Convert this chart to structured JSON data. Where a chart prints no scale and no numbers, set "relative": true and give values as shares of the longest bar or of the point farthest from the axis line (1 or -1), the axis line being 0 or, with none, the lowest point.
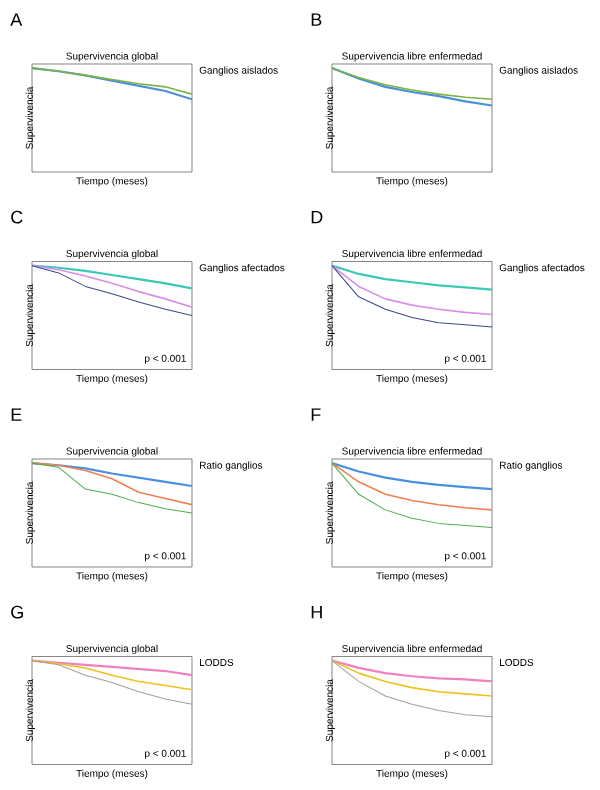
{
  "chart_data": [
    {
      "type": "line",
      "title": "A",
      "subtitle": "Supervivencia global",
      "xlabel": "Tiempo (meses)",
      "ylabel": "Supervivencia",
      "legend_title": "Ganglios aislados",
      "relative": true,
      "categories": [
        null,
        null,
        null,
        null,
        null,
        null,
        null
      ],
      "series": [
        {
          "color": "#4a90d9",
          "values": [
            1,
            0.97,
            0.93,
            0.88,
            0.83,
            0.78,
            0.7
          ]
        },
        {
          "color": "#7cb342",
          "values": [
            1,
            0.97,
            0.93,
            0.89,
            0.85,
            0.82,
            0.75
          ]
        }
      ]
    },
    {
      "type": "line",
      "title": "B",
      "subtitle": "Supervivencia libre enfermedad",
      "xlabel": "Tiempo (meses)",
      "ylabel": "Supervivencia",
      "legend_title": "Ganglios aislados",
      "relative": true,
      "categories": [
        null,
        null,
        null,
        null,
        null,
        null,
        null
      ],
      "series": [
        {
          "color": "#4a90d9",
          "values": [
            1,
            0.9,
            0.82,
            0.77,
            0.73,
            0.68,
            0.64
          ]
        },
        {
          "color": "#7cb342",
          "values": [
            1,
            0.91,
            0.84,
            0.79,
            0.75,
            0.72,
            0.7
          ]
        }
      ]
    },
    {
      "type": "line",
      "title": "C",
      "subtitle": "Supervivencia global",
      "xlabel": "Tiempo (meses)",
      "ylabel": "Supervivencia",
      "legend_title": "Ganglios afectados",
      "annotations": [
        "p < 0.001"
      ],
      "relative": true,
      "categories": [
        null,
        null,
        null,
        null,
        null,
        null,
        null
      ],
      "series": [
        {
          "color": "#3cc8b4",
          "values": [
            1,
            0.98,
            0.95,
            0.91,
            0.87,
            0.83,
            0.78
          ]
        },
        {
          "color": "#d98ee8",
          "values": [
            1,
            0.96,
            0.9,
            0.83,
            0.75,
            0.68,
            0.6
          ]
        },
        {
          "color": "#3a4a8c",
          "values": [
            1,
            0.93,
            0.8,
            0.73,
            0.65,
            0.58,
            0.52
          ]
        }
      ]
    },
    {
      "type": "line",
      "title": "D",
      "subtitle": "Supervivencia libre enfermedad",
      "xlabel": "Tiempo (meses)",
      "ylabel": "Supervivencia",
      "legend_title": "Ganglios afectados",
      "annotations": [
        "p < 0.001"
      ],
      "relative": true,
      "categories": [
        null,
        null,
        null,
        null,
        null,
        null,
        null
      ],
      "series": [
        {
          "color": "#3cc8b4",
          "values": [
            1,
            0.92,
            0.87,
            0.84,
            0.81,
            0.79,
            0.77
          ]
        },
        {
          "color": "#d98ee8",
          "values": [
            1,
            0.8,
            0.68,
            0.62,
            0.58,
            0.55,
            0.53
          ]
        },
        {
          "color": "#3a4a8c",
          "values": [
            1,
            0.7,
            0.58,
            0.5,
            0.45,
            0.43,
            0.41
          ]
        }
      ]
    },
    {
      "type": "line",
      "title": "E",
      "subtitle": "Supervivencia global",
      "xlabel": "Tiempo (meses)",
      "ylabel": "Supervivencia",
      "legend_title": "Ratio ganglios",
      "annotations": [
        "p < 0.001"
      ],
      "relative": true,
      "categories": [
        null,
        null,
        null,
        null,
        null,
        null,
        null
      ],
      "series": [
        {
          "color": "#4a90e2",
          "values": [
            1,
            0.98,
            0.95,
            0.9,
            0.86,
            0.82,
            0.78
          ]
        },
        {
          "color": "#f08050",
          "values": [
            1,
            0.98,
            0.93,
            0.85,
            0.72,
            0.66,
            0.6
          ]
        },
        {
          "color": "#4caf50",
          "values": [
            1,
            0.96,
            0.75,
            0.7,
            0.62,
            0.56,
            0.52
          ]
        }
      ]
    },
    {
      "type": "line",
      "title": "F",
      "subtitle": "Supervivencia libre enfermedad",
      "xlabel": "Tiempo (meses)",
      "ylabel": "Supervivencia",
      "legend_title": "Ratio ganglios",
      "annotations": [
        "p < 0.001"
      ],
      "relative": true,
      "categories": [
        null,
        null,
        null,
        null,
        null,
        null,
        null
      ],
      "series": [
        {
          "color": "#4a90e2",
          "values": [
            1,
            0.92,
            0.86,
            0.82,
            0.79,
            0.77,
            0.75
          ]
        },
        {
          "color": "#f08050",
          "values": [
            1,
            0.82,
            0.7,
            0.64,
            0.6,
            0.57,
            0.55
          ]
        },
        {
          "color": "#4caf50",
          "values": [
            1,
            0.7,
            0.55,
            0.47,
            0.42,
            0.4,
            0.38
          ]
        }
      ]
    },
    {
      "type": "line",
      "title": "G",
      "subtitle": "Supervivencia global",
      "xlabel": "Tiempo (meses)",
      "ylabel": "Supervivencia",
      "legend_title": "LODDS",
      "annotations": [
        "p < 0.001"
      ],
      "relative": true,
      "categories": [
        null,
        null,
        null,
        null,
        null,
        null,
        null
      ],
      "series": [
        {
          "color": "#f080c0",
          "values": [
            1,
            0.98,
            0.96,
            0.94,
            0.92,
            0.9,
            0.86
          ]
        },
        {
          "color": "#f0c020",
          "values": [
            1,
            0.97,
            0.93,
            0.86,
            0.8,
            0.76,
            0.72
          ]
        },
        {
          "color": "#a0a0a0",
          "values": [
            1,
            0.96,
            0.86,
            0.79,
            0.7,
            0.63,
            0.58
          ]
        }
      ]
    },
    {
      "type": "line",
      "title": "H",
      "subtitle": "Supervivencia libre enfermedad",
      "xlabel": "Tiempo (meses)",
      "ylabel": "Supervivencia",
      "legend_title": "LODDS",
      "annotations": [
        "p < 0.001"
      ],
      "relative": true,
      "categories": [
        null,
        null,
        null,
        null,
        null,
        null,
        null
      ],
      "series": [
        {
          "color": "#f080c0",
          "values": [
            1,
            0.93,
            0.88,
            0.85,
            0.83,
            0.82,
            0.8
          ]
        },
        {
          "color": "#f0c020",
          "values": [
            1,
            0.88,
            0.8,
            0.74,
            0.7,
            0.68,
            0.66
          ]
        },
        {
          "color": "#a0a0a0",
          "values": [
            1,
            0.8,
            0.66,
            0.58,
            0.52,
            0.48,
            0.46
          ]
        }
      ]
    }
  ]
}
